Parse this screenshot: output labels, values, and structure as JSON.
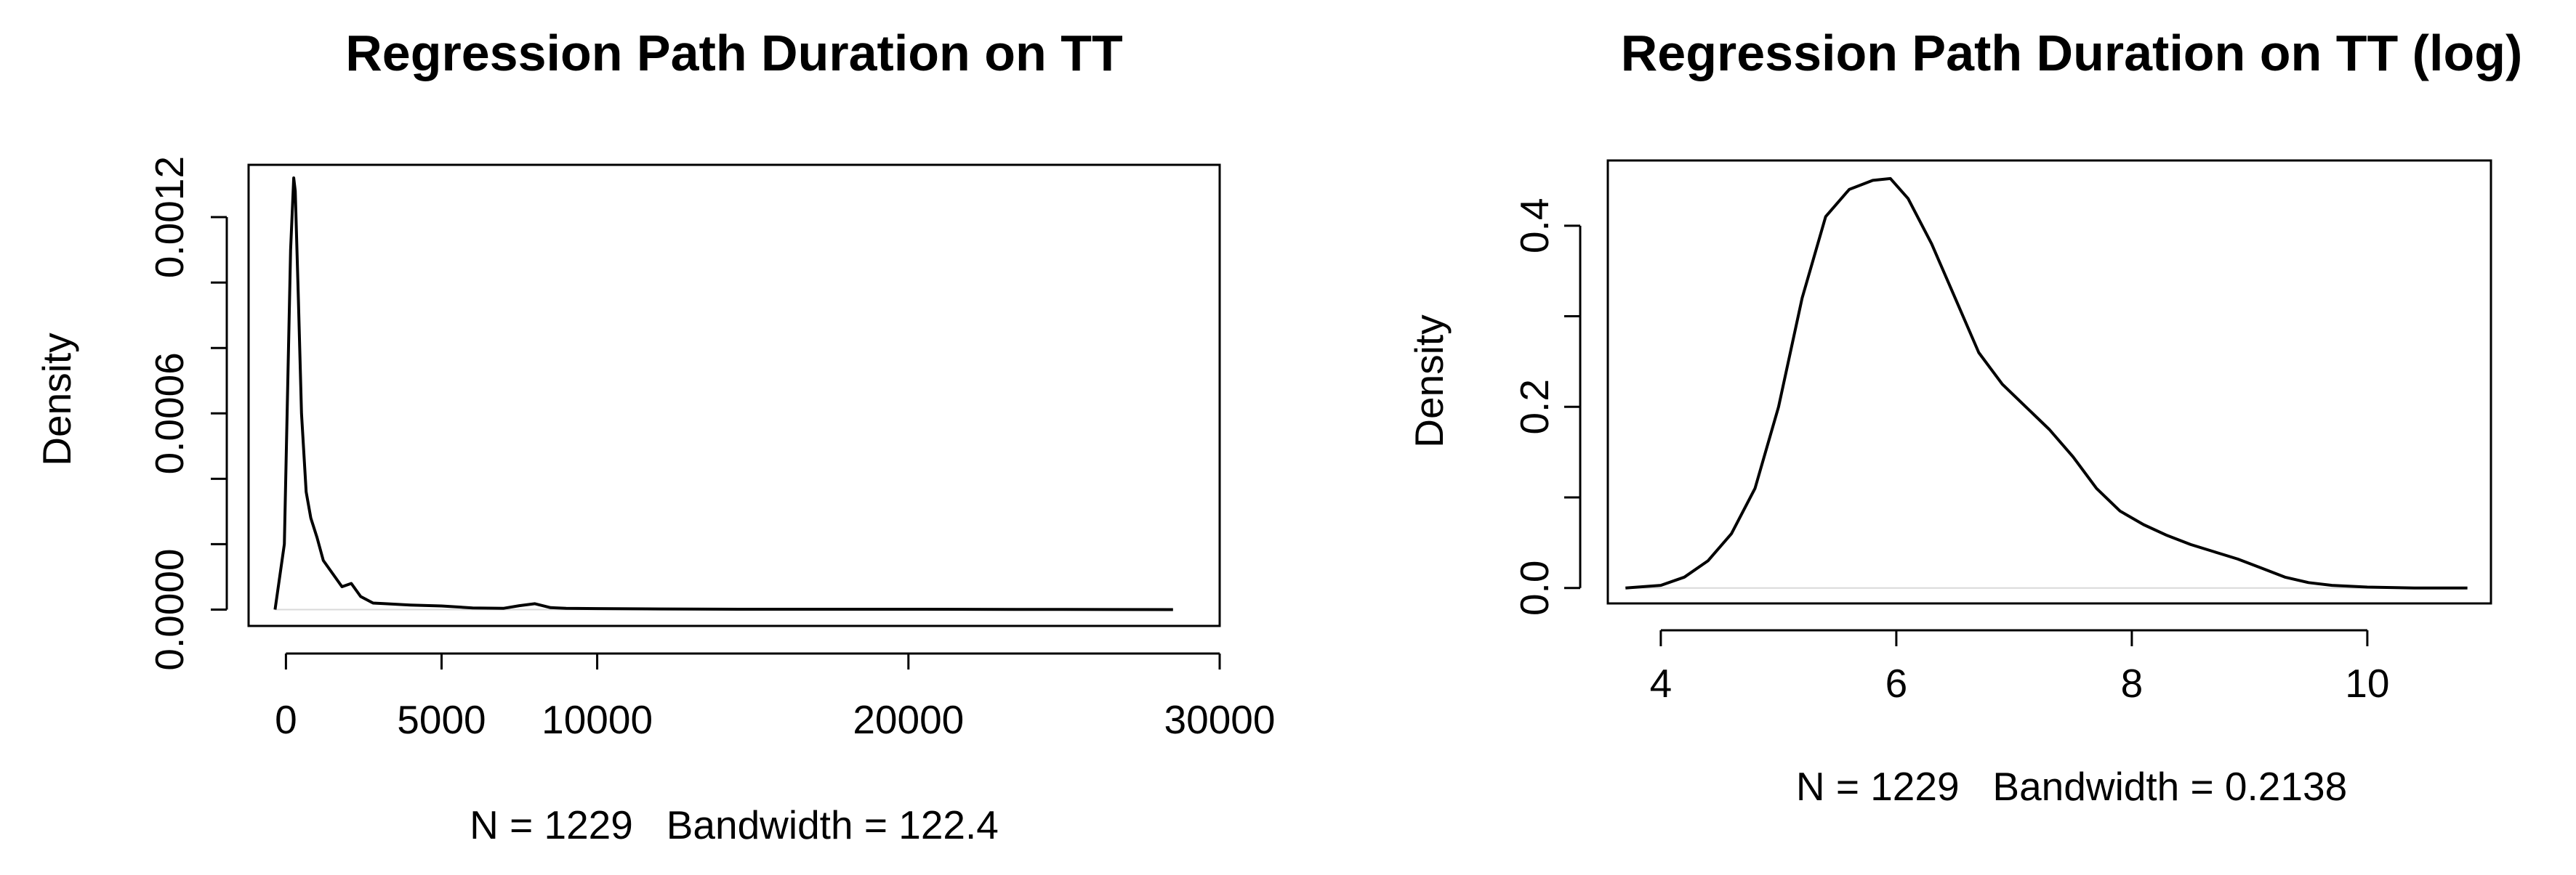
{
  "chart_data": [
    {
      "type": "line",
      "title": "Regression Path Duration on TT",
      "xlabel": "N = 1229   Bandwidth = 122.4",
      "ylabel": "Density",
      "xlim": [
        -1200,
        30000
      ],
      "ylim": [
        -5e-05,
        0.00136
      ],
      "x_ticks": [
        0,
        5000,
        10000,
        20000,
        30000
      ],
      "x_tick_labels": [
        "0",
        "5000",
        "10000",
        "20000",
        "30000"
      ],
      "y_ticks": [
        0.0,
        0.0002,
        0.0004,
        0.0006,
        0.0008,
        0.001,
        0.0012
      ],
      "y_tick_labels": [
        "0.0000",
        "",
        "",
        "0.0006",
        "",
        "",
        "0.0012"
      ],
      "grid": false,
      "line_color": "#000000",
      "baseline_color": "#d9d9d9",
      "series": [
        {
          "x": [
            -350,
            -50,
            150,
            250,
            300,
            400,
            500,
            650,
            800,
            1000,
            1200,
            1500,
            1800,
            2100,
            2400,
            2800,
            3200,
            4000,
            5000,
            6000,
            7000,
            7500,
            8000,
            8500,
            9000,
            10000,
            12000,
            15000,
            20000,
            25000,
            28500
          ],
          "y": [
            0.0,
            0.0002,
            0.0011,
            0.00132,
            0.00128,
            0.00095,
            0.0006,
            0.00036,
            0.00028,
            0.00022,
            0.00015,
            0.00011,
            7e-05,
            8e-05,
            4e-05,
            2e-05,
            1.8e-05,
            1.4e-05,
            1.1e-05,
            5e-06,
            4e-06,
            1.2e-05,
            1.8e-05,
            6e-06,
            4e-06,
            3e-06,
            2e-06,
            1e-06,
            1e-06,
            5e-07,
            0.0
          ]
        }
      ]
    },
    {
      "type": "line",
      "title": "Regression Path Duration on TT (log)",
      "xlabel": "N = 1229   Bandwidth = 0.2138",
      "ylabel": "Density",
      "xlim": [
        3.55,
        11.05
      ],
      "ylim": [
        -0.017,
        0.472
      ],
      "x_ticks": [
        4,
        6,
        8,
        10
      ],
      "x_tick_labels": [
        "4",
        "6",
        "8",
        "10"
      ],
      "y_ticks": [
        0.0,
        0.1,
        0.2,
        0.3,
        0.4
      ],
      "y_tick_labels": [
        "0.0",
        "",
        "0.2",
        "",
        "0.4"
      ],
      "grid": false,
      "line_color": "#000000",
      "baseline_color": "#d9d9d9",
      "series": [
        {
          "x": [
            3.7,
            4.0,
            4.2,
            4.4,
            4.6,
            4.8,
            5.0,
            5.2,
            5.4,
            5.6,
            5.8,
            5.95,
            6.1,
            6.3,
            6.5,
            6.7,
            6.9,
            7.1,
            7.3,
            7.5,
            7.7,
            7.9,
            8.1,
            8.3,
            8.5,
            8.7,
            8.9,
            9.1,
            9.3,
            9.5,
            9.7,
            10.0,
            10.4,
            10.85
          ],
          "y": [
            0.0,
            0.003,
            0.012,
            0.03,
            0.06,
            0.11,
            0.2,
            0.32,
            0.41,
            0.44,
            0.45,
            0.452,
            0.43,
            0.38,
            0.32,
            0.26,
            0.225,
            0.2,
            0.175,
            0.145,
            0.11,
            0.085,
            0.07,
            0.058,
            0.048,
            0.04,
            0.032,
            0.022,
            0.012,
            0.006,
            0.003,
            0.001,
            0.0,
            0.0
          ]
        }
      ]
    }
  ]
}
